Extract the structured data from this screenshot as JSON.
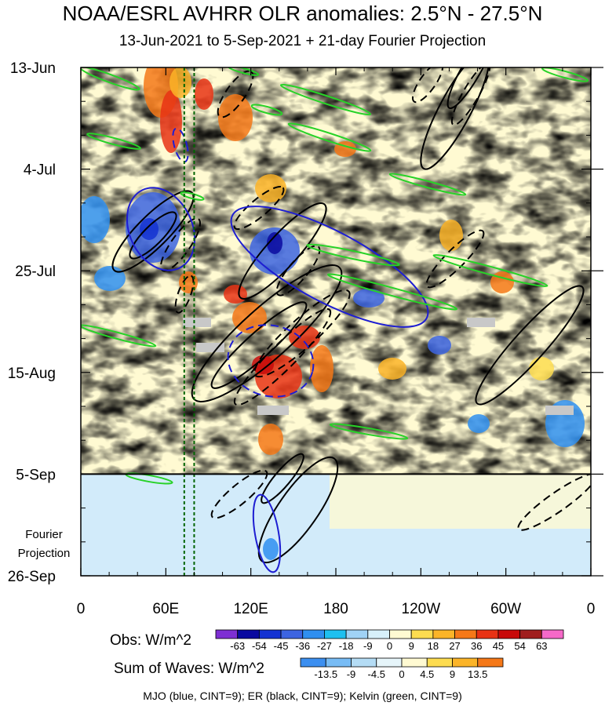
{
  "chart_data": {
    "type": "heatmap",
    "title": "NOAA/ESRL AVHRR OLR anomalies: 2.5°N - 27.5°N",
    "subtitle": "13-Jun-2021 to 5-Sep-2021 + 21-day Fourier Projection",
    "x_tick_labels": [
      "0",
      "60E",
      "120E",
      "180",
      "120W",
      "60W",
      "0"
    ],
    "x_tick_degrees_east": [
      0,
      60,
      120,
      180,
      240,
      300,
      360
    ],
    "y_tick_labels": [
      "13-Jun",
      "4-Jul",
      "25-Jul",
      "15-Aug",
      "5-Sep",
      "26-Sep"
    ],
    "y_tick_dates": [
      "2021-06-13",
      "2021-07-04",
      "2021-07-25",
      "2021-08-15",
      "2021-09-05",
      "2021-09-26"
    ],
    "observation_end": "2021-09-05",
    "projection_label": [
      "Fourier",
      "Projection"
    ],
    "obs_colorbar": {
      "label": "Obs: W/m^2",
      "levels": [
        "-63",
        "-54",
        "-45",
        "-36",
        "-27",
        "-18",
        "-9",
        "0",
        "9",
        "18",
        "27",
        "36",
        "45",
        "54",
        "63"
      ],
      "colors": [
        "#7e2fd3",
        "#0a0aa0",
        "#1432d2",
        "#3c64e1",
        "#2f8ff0",
        "#1ec0f0",
        "#a0d2f5",
        "#d7f0fa",
        "#fffad2",
        "#fddc50",
        "#fbb428",
        "#f57818",
        "#e83214",
        "#c80a0a",
        "#a01e1e",
        "#f569c8"
      ]
    },
    "wave_colorbar": {
      "label": "Sum of Waves: W/m^2",
      "levels": [
        "-13.5",
        "-9",
        "-4.5",
        "0",
        "4.5",
        "9",
        "13.5"
      ],
      "colors": [
        "#3c8ff0",
        "#78bcf5",
        "#b4dcf5",
        "#e6f5fa",
        "#fffad2",
        "#fddc50",
        "#fbb428",
        "#f57818"
      ]
    },
    "contours": "MJO (blue, CINT=9); ER (black, CINT=9); Kelvin (green, CINT=9)",
    "series_colors": {
      "MJO": "#1e1ed2",
      "ER": "#000000",
      "Kelvin": "#28d228"
    },
    "vertical_lines_degrees_east": [
      73,
      80
    ],
    "vertical_line_color": "#006400",
    "missing_data_color": "#c8c8c8"
  }
}
